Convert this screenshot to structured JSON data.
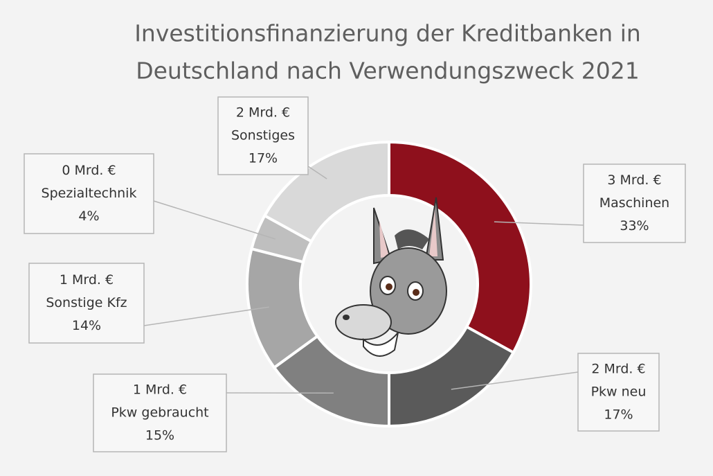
{
  "chart_data": {
    "type": "donut",
    "title": [
      "Investitionsfinanzierung der Kreditbanken in",
      "Deutschland nach Verwendungszweck 2021"
    ],
    "categories": [
      "Maschinen",
      "Pkw neu",
      "Pkw gebraucht",
      "Sonstige Kfz",
      "Spezialtechnik",
      "Sonstiges"
    ],
    "values": [
      33,
      17,
      15,
      14,
      4,
      17
    ],
    "value_labels": [
      "33%",
      "17%",
      "15%",
      "14%",
      "4%",
      "17%"
    ],
    "amount_labels": [
      "3 Mrd. €",
      "2 Mrd. €",
      "1 Mrd. €",
      "1 Mrd. €",
      "0 Mrd. €",
      "2 Mrd. €"
    ],
    "colors": [
      "#8e101c",
      "#5a5a5a",
      "#808080",
      "#a6a6a6",
      "#bfbfbf",
      "#d9d9d9"
    ]
  }
}
